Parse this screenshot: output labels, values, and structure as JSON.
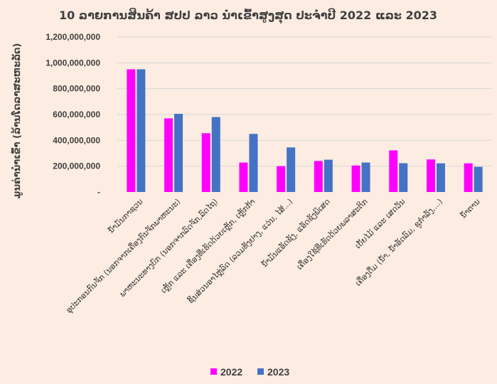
{
  "chart_data": {
    "type": "bar",
    "title": "10 ລາຍການສິນຄ້າ ສປປ ລາວ ນໍາເຂົ້າສູງສຸດ ປະຈໍາປີ 2022 ແລະ 2023",
    "xlabel": "",
    "ylabel": "ມູນຄ່ານໍາເຂົ້າ (ລ້ານໂດລາສະຫະລັດ)",
    "ylim": [
      0,
      1200000000
    ],
    "yticks": [
      "-",
      "200,000,000",
      "400,000,000",
      "600,000,000",
      "800,000,000",
      "1,000,000,000",
      "1,200,000,000"
    ],
    "ytick_values": [
      0,
      200000000,
      400000000,
      600000000,
      800000000,
      1000000000,
      1200000000
    ],
    "grid": true,
    "legend_position": "bottom",
    "categories": [
      "ນໍ້າມັນກາຊວນ",
      "ອຸປະກອນກົນຈັກ (ນອກຈາກເຄື່ອງກົນຈັກພາຫະນະ)",
      "ພາຫະນະທາງບົກ (ນອກຈາກລົດຈັກ,ລົດໄຖ)",
      "ເຫຼັກ ແລະ ເຄື່ອງທີ່ເຮັດດ້ວຍເຫຼັກ, ເຫຼັກກ້າ",
      "ຊິ້ນສ່ວນອາໄຫຼ່ລົດ (ລວມທັງຢາງ, ແວ່ນ, ໄສ້...)",
      "ນໍ້າມັນແອັດຊັງ, ແອັດຊັງພິເສດ",
      "ເຄື່ອງໃຊ້ທີ່ເຮັດດ້ວຍພລາສະຕິກ",
      "ເບັ້ຍໄມ້ ແລະ ເສດວັນ",
      "ເຄື່ອງດື່ມ (ນໍ້າ, ນໍ້າອັດລົມ, ຊູກໍາລັງ,...)",
      "ນໍ້າຕານ"
    ],
    "series": [
      {
        "name": "2022",
        "color": "#ff00ff",
        "values": [
          950000000,
          570000000,
          455000000,
          228000000,
          200000000,
          240000000,
          205000000,
          322000000,
          252000000,
          222000000
        ]
      },
      {
        "name": "2023",
        "color": "#4472c4",
        "values": [
          950000000,
          605000000,
          580000000,
          450000000,
          345000000,
          250000000,
          228000000,
          223000000,
          222000000,
          195000000
        ]
      }
    ]
  }
}
